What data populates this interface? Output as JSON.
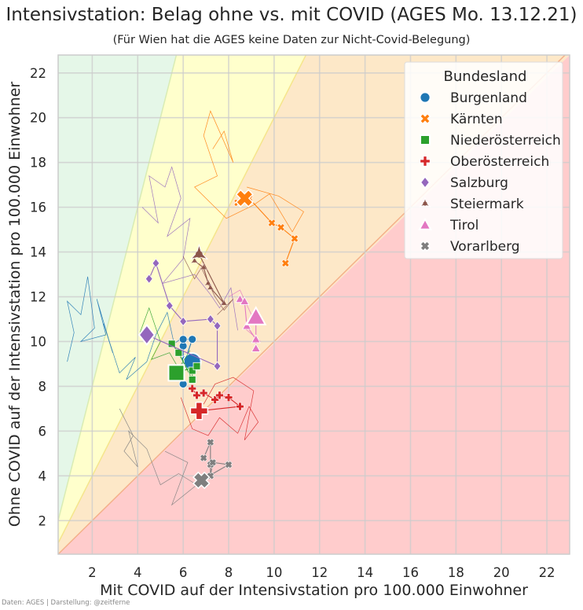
{
  "title": "Intensivstation: Belag ohne vs. mit COVID (AGES Mo. 13.12.21)",
  "subtitle": "(Für Wien hat die AGES keine Daten zur Nicht-Covid-Belegung)",
  "credit": "Daten: AGES | Darstellung: @zeitferne",
  "chart_data": {
    "type": "scatter",
    "title": "Intensivstation: Belag ohne vs. mit COVID (AGES Mo. 13.12.21)",
    "xlabel": "Mit COVID auf der Intensivstation pro 100.000 Einwohner",
    "ylabel": "Ohne COVID auf der Intensivstation pro 100.000 Einwohner",
    "xlim": [
      0.5,
      23
    ],
    "ylim": [
      0.5,
      22.8
    ],
    "xticks": [
      2,
      4,
      6,
      8,
      10,
      12,
      14,
      16,
      18,
      20,
      22
    ],
    "yticks": [
      2,
      4,
      6,
      8,
      10,
      12,
      14,
      16,
      18,
      20,
      22
    ],
    "grid": true,
    "legend_title": "Bundesland",
    "legend_position": "top-right",
    "background_zones": [
      {
        "ratio_above": 4,
        "color": "#e5f7e8"
      },
      {
        "ratio_between": [
          2,
          4
        ],
        "color": "#ffffcc"
      },
      {
        "ratio_between": [
          1,
          2
        ],
        "color": "#fde8c8"
      },
      {
        "ratio_below": 1,
        "color": "#ffcccc"
      }
    ],
    "series": [
      {
        "name": "Burgenland",
        "color": "#1f77b4",
        "marker": "circle",
        "trail": [
          [
            0.9,
            9.1
          ],
          [
            1.2,
            10.4
          ],
          [
            0.9,
            11.8
          ],
          [
            1.5,
            11.2
          ],
          [
            1.8,
            12.9
          ],
          [
            2.1,
            10.6
          ],
          [
            1.5,
            10.0
          ],
          [
            2.6,
            10.3
          ],
          [
            2.2,
            11.9
          ],
          [
            2.9,
            9.5
          ],
          [
            2.5,
            10.8
          ],
          [
            3.2,
            8.6
          ],
          [
            3.9,
            9.3
          ],
          [
            3.5,
            8.3
          ],
          [
            4.4,
            9.1
          ],
          [
            4.8,
            10.3
          ],
          [
            5.3,
            11.3
          ],
          [
            5.6,
            9.9
          ],
          [
            6.0,
            10.2
          ]
        ],
        "points": [
          [
            6.0,
            8.1
          ],
          [
            6.0,
            9.8
          ],
          [
            6.0,
            10.1
          ],
          [
            6.4,
            10.1
          ],
          [
            6.1,
            9.2
          ]
        ],
        "latest": [
          6.4,
          9.1
        ]
      },
      {
        "name": "Kärnten",
        "color": "#ff7f0e",
        "marker": "x",
        "trail": [
          [
            7.3,
            18.6
          ],
          [
            7.8,
            19.4
          ],
          [
            8.2,
            18.0
          ],
          [
            7.2,
            20.3
          ],
          [
            6.9,
            19.2
          ],
          [
            7.5,
            17.4
          ],
          [
            6.5,
            16.9
          ],
          [
            7.9,
            15.5
          ],
          [
            9.1,
            16.1
          ],
          [
            9.8,
            16.6
          ],
          [
            10.8,
            14.9
          ],
          [
            11.3,
            15.8
          ],
          [
            10.2,
            16.5
          ],
          [
            8.8,
            16.9
          ]
        ],
        "points": [
          [
            10.5,
            13.5
          ],
          [
            10.9,
            14.6
          ],
          [
            10.3,
            15.1
          ],
          [
            9.9,
            15.3
          ],
          [
            8.9,
            16.4
          ],
          [
            8.4,
            16.2
          ]
        ],
        "latest": [
          8.7,
          16.4
        ]
      },
      {
        "name": "Niederösterreich",
        "color": "#2ca02c",
        "marker": "square",
        "trail": [
          [
            4.1,
            10.4
          ],
          [
            4.5,
            11.5
          ],
          [
            5.0,
            10.0
          ],
          [
            4.6,
            9.2
          ],
          [
            5.4,
            9.5
          ],
          [
            5.8,
            8.8
          ],
          [
            6.3,
            9.6
          ]
        ],
        "points": [
          [
            5.5,
            9.9
          ],
          [
            5.8,
            9.5
          ],
          [
            6.4,
            8.3
          ],
          [
            6.4,
            8.7
          ],
          [
            6.6,
            8.9
          ]
        ],
        "latest": [
          5.7,
          8.6
        ]
      },
      {
        "name": "Oberösterreich",
        "color": "#d62728",
        "marker": "plus",
        "trail": [
          [
            5.9,
            7.5
          ],
          [
            6.4,
            6.1
          ],
          [
            7.1,
            5.8
          ],
          [
            7.6,
            6.6
          ],
          [
            8.4,
            5.9
          ],
          [
            8.9,
            7.1
          ],
          [
            9.3,
            6.4
          ],
          [
            8.7,
            5.6
          ],
          [
            9.1,
            7.8
          ],
          [
            8.2,
            8.4
          ],
          [
            7.4,
            8.1
          ],
          [
            6.9,
            7.2
          ]
        ],
        "points": [
          [
            6.4,
            7.9
          ],
          [
            6.6,
            7.6
          ],
          [
            6.9,
            7.7
          ],
          [
            7.4,
            7.4
          ],
          [
            7.6,
            7.6
          ],
          [
            8.0,
            7.5
          ],
          [
            8.5,
            7.1
          ]
        ],
        "latest": [
          6.7,
          6.9
        ]
      },
      {
        "name": "Salzburg",
        "color": "#9467bd",
        "marker": "diamond",
        "trail": [
          [
            4.2,
            16.0
          ],
          [
            4.9,
            15.3
          ],
          [
            4.5,
            17.4
          ],
          [
            5.2,
            16.9
          ],
          [
            5.5,
            17.8
          ],
          [
            5.9,
            16.4
          ],
          [
            5.3,
            14.7
          ],
          [
            6.3,
            15.5
          ],
          [
            6.0,
            13.7
          ],
          [
            5.1,
            12.6
          ],
          [
            6.5,
            13.0
          ],
          [
            7.2,
            12.1
          ],
          [
            7.6,
            11.5
          ],
          [
            8.1,
            12.4
          ],
          [
            8.4,
            10.5
          ]
        ],
        "points": [
          [
            4.5,
            12.8
          ],
          [
            4.8,
            13.5
          ],
          [
            5.4,
            11.6
          ],
          [
            6.0,
            10.9
          ],
          [
            7.2,
            11.0
          ],
          [
            7.5,
            10.7
          ],
          [
            7.5,
            8.9
          ]
        ],
        "latest": [
          4.4,
          10.3
        ]
      },
      {
        "name": "Steiermark",
        "color": "#8c564b",
        "marker": "tristar",
        "trail": [
          [
            6.0,
            13.8
          ],
          [
            6.5,
            12.8
          ],
          [
            6.8,
            13.3
          ],
          [
            7.4,
            12.0
          ],
          [
            7.8,
            11.4
          ],
          [
            8.2,
            11.9
          ],
          [
            7.5,
            11.2
          ]
        ],
        "points": [
          [
            6.5,
            13.6
          ],
          [
            6.9,
            13.3
          ],
          [
            7.1,
            12.6
          ],
          [
            7.2,
            12.4
          ],
          [
            7.8,
            11.7
          ]
        ],
        "latest": [
          6.7,
          13.9
        ]
      },
      {
        "name": "Tirol",
        "color": "#e377c2",
        "marker": "triangle",
        "trail": [
          [
            8.0,
            12.0
          ],
          [
            8.5,
            12.3
          ],
          [
            9.0,
            11.2
          ],
          [
            8.7,
            10.6
          ],
          [
            9.4,
            10.0
          ]
        ],
        "points": [
          [
            8.5,
            11.9
          ],
          [
            8.7,
            11.8
          ],
          [
            8.8,
            10.7
          ],
          [
            9.2,
            10.1
          ],
          [
            9.2,
            9.7
          ]
        ],
        "latest": [
          9.2,
          11.1
        ]
      },
      {
        "name": "Vorarlberg",
        "color": "#7f7f7f",
        "marker": "xsquare",
        "trail": [
          [
            3.2,
            7.0
          ],
          [
            3.8,
            5.8
          ],
          [
            3.4,
            5.1
          ],
          [
            4.0,
            4.4
          ],
          [
            3.6,
            6.0
          ],
          [
            4.4,
            5.2
          ],
          [
            5.0,
            3.6
          ],
          [
            5.8,
            4.1
          ],
          [
            6.6,
            3.6
          ],
          [
            5.5,
            2.7
          ],
          [
            6.2,
            4.6
          ],
          [
            5.2,
            5.1
          ]
        ],
        "points": [
          [
            6.9,
            4.8
          ],
          [
            7.2,
            5.5
          ],
          [
            7.2,
            4.5
          ],
          [
            7.2,
            4.0
          ],
          [
            7.3,
            4.6
          ],
          [
            8.0,
            4.5
          ]
        ],
        "latest": [
          6.8,
          3.8
        ]
      }
    ]
  }
}
